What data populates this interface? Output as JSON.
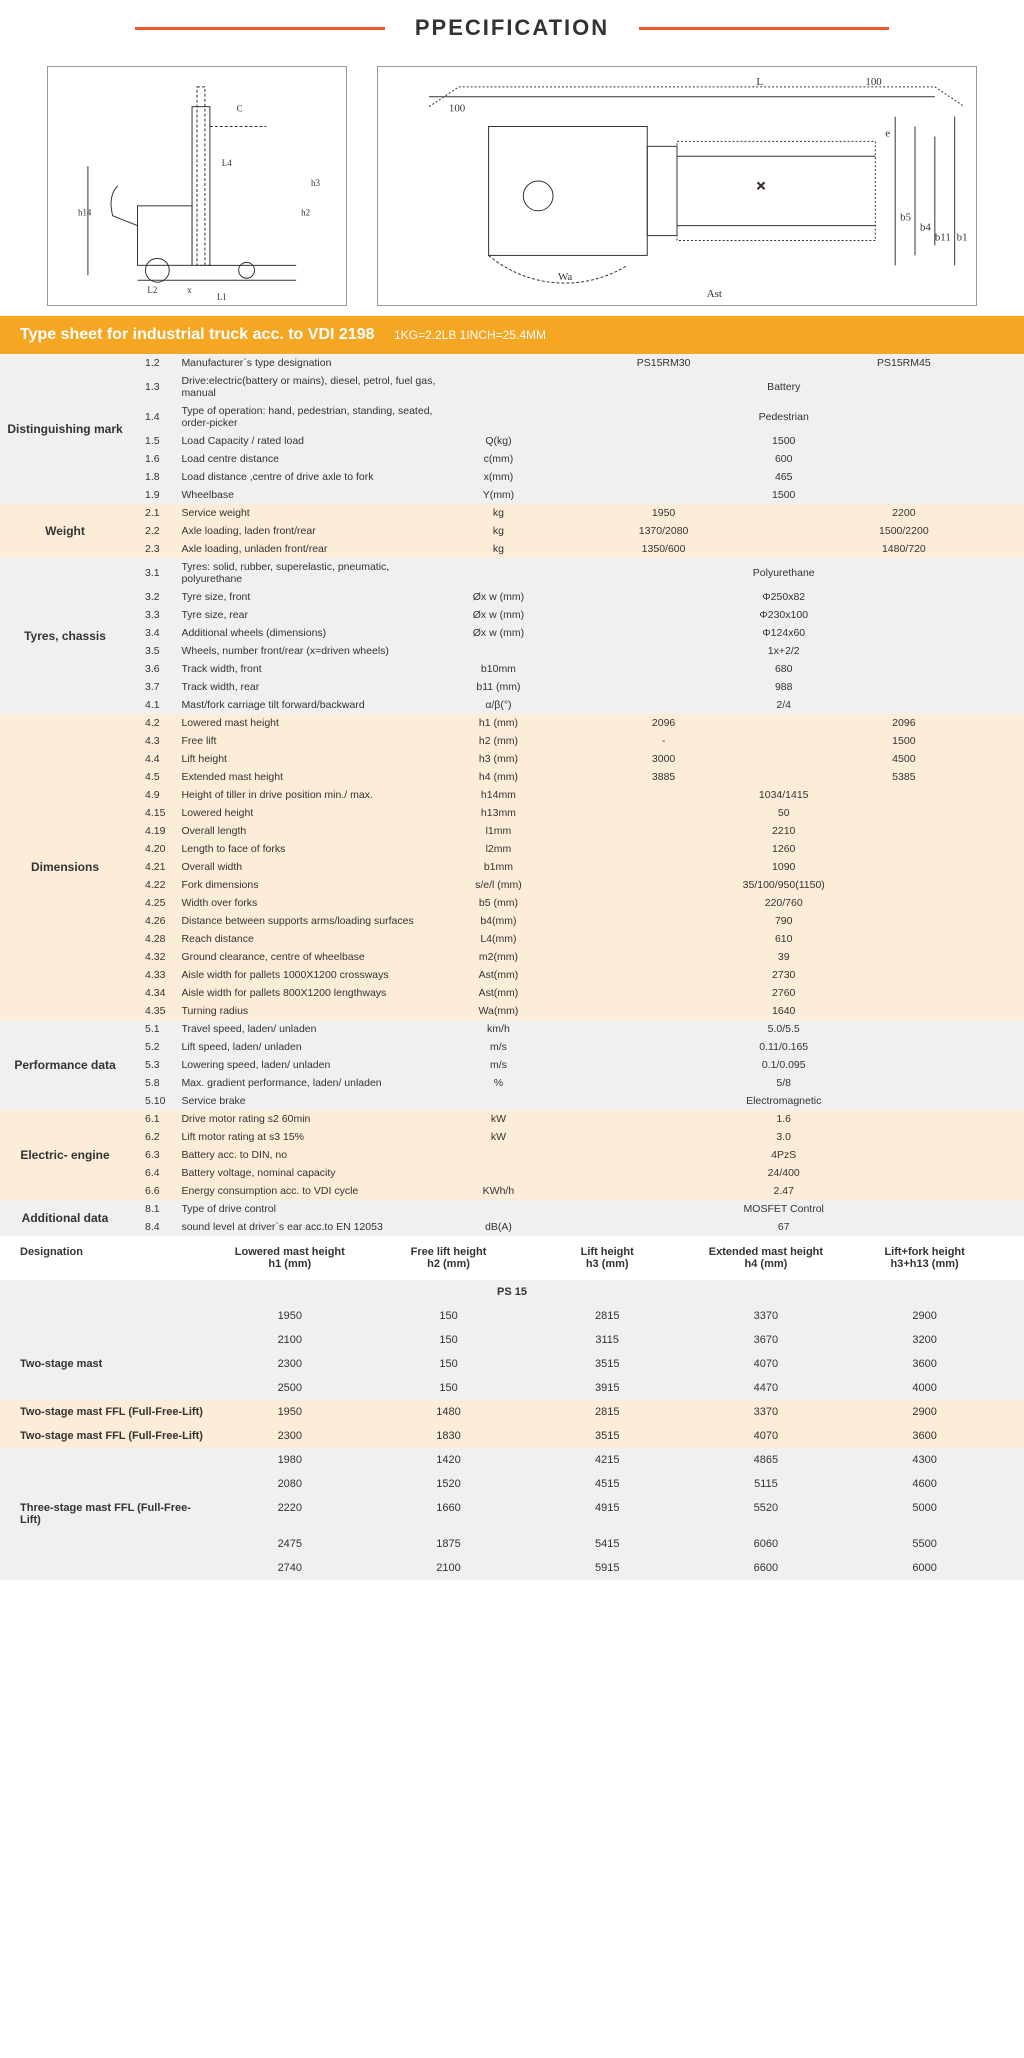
{
  "page_title": "PPECIFICATION",
  "title_bar": {
    "main": "Type sheet for industrial truck acc. to VDI 2198",
    "sub": "1KG=2.2LB  1INCH=25.4MM"
  },
  "sections": [
    {
      "label": "Distinguishing mark",
      "bg": "grey",
      "rows": [
        {
          "n": "1.2",
          "d": "Manufacturer`s type designation",
          "u": "",
          "v": [
            "PS15RM30",
            "PS15RM45"
          ]
        },
        {
          "n": "1.3",
          "d": "Drive:electric(battery or mains), diesel, petrol, fuel gas, manual",
          "u": "",
          "v": [
            "Battery"
          ]
        },
        {
          "n": "1.4",
          "d": "Type of operation: hand, pedestrian, standing, seated, order-picker",
          "u": "",
          "v": [
            "Pedestrian"
          ]
        },
        {
          "n": "1.5",
          "d": "Load Capacity / rated load",
          "u": "Q(kg)",
          "v": [
            "1500"
          ]
        },
        {
          "n": "1.6",
          "d": "Load centre distance",
          "u": "c(mm)",
          "v": [
            "600"
          ]
        },
        {
          "n": "1.8",
          "d": "Load distance ,centre of drive axle to fork",
          "u": "x(mm)",
          "v": [
            "465"
          ]
        },
        {
          "n": "1.9",
          "d": "Wheelbase",
          "u": "Y(mm)",
          "v": [
            "1500"
          ]
        }
      ]
    },
    {
      "label": "Weight",
      "bg": "cream",
      "rows": [
        {
          "n": "2.1",
          "d": "Service weight",
          "u": "kg",
          "v": [
            "1950",
            "2200"
          ]
        },
        {
          "n": "2.2",
          "d": "Axle loading, laden front/rear",
          "u": "kg",
          "v": [
            "1370/2080",
            "1500/2200"
          ]
        },
        {
          "n": "2.3",
          "d": "Axle loading, unladen front/rear",
          "u": "kg",
          "v": [
            "1350/600",
            "1480/720"
          ]
        }
      ]
    },
    {
      "label": "Tyres, chassis",
      "bg": "grey",
      "rows": [
        {
          "n": "3.1",
          "d": "Tyres: solid, rubber, superelastic, pneumatic, polyurethane",
          "u": "",
          "v": [
            "Polyurethane"
          ]
        },
        {
          "n": "3.2",
          "d": "Tyre size, front",
          "u": "Øx w (mm)",
          "v": [
            "Φ250x82"
          ]
        },
        {
          "n": "3.3",
          "d": "Tyre size, rear",
          "u": "Øx w (mm)",
          "v": [
            "Φ230x100"
          ]
        },
        {
          "n": "3.4",
          "d": "Additional wheels (dimensions)",
          "u": "Øx w (mm)",
          "v": [
            "Φ124x60"
          ]
        },
        {
          "n": "3.5",
          "d": "Wheels, number front/rear (x=driven wheels)",
          "u": "",
          "v": [
            "1x+2/2"
          ]
        },
        {
          "n": "3.6",
          "d": "Track width, front",
          "u": "b10mm",
          "v": [
            "680"
          ]
        },
        {
          "n": "3.7",
          "d": "Track width, rear",
          "u": "b11 (mm)",
          "v": [
            "988"
          ]
        },
        {
          "n": "4.1",
          "d": "Mast/fork carriage tilt forward/backward",
          "u": "α/β(°)",
          "v": [
            "2/4"
          ]
        }
      ]
    },
    {
      "label": "Dimensions",
      "bg": "cream",
      "rows": [
        {
          "n": "4.2",
          "d": "Lowered mast height",
          "u": "h1 (mm)",
          "v": [
            "2096",
            "2096"
          ]
        },
        {
          "n": "4.3",
          "d": "Free lift",
          "u": "h2 (mm)",
          "v": [
            "-",
            "1500"
          ]
        },
        {
          "n": "4.4",
          "d": "Lift height",
          "u": "h3 (mm)",
          "v": [
            "3000",
            "4500"
          ]
        },
        {
          "n": "4.5",
          "d": "Extended mast height",
          "u": "h4 (mm)",
          "v": [
            "3885",
            "5385"
          ]
        },
        {
          "n": "4.9",
          "d": "Height of tiller in drive position min./ max.",
          "u": "h14mm",
          "v": [
            "1034/1415"
          ]
        },
        {
          "n": "4.15",
          "d": "Lowered height",
          "u": "h13mm",
          "v": [
            "50"
          ]
        },
        {
          "n": "4.19",
          "d": "Overall length",
          "u": "l1mm",
          "v": [
            "2210"
          ]
        },
        {
          "n": "4.20",
          "d": "Length to face of forks",
          "u": "l2mm",
          "v": [
            "1260"
          ]
        },
        {
          "n": "4.21",
          "d": "Overall width",
          "u": "b1mm",
          "v": [
            "1090"
          ]
        },
        {
          "n": "4.22",
          "d": "Fork dimensions",
          "u": "s/e/l (mm)",
          "v": [
            "35/100/950(1150)"
          ]
        },
        {
          "n": "4.25",
          "d": "Width over forks",
          "u": "b5 (mm)",
          "v": [
            "220/760"
          ]
        },
        {
          "n": "4.26",
          "d": "Distance between supports arms/loading surfaces",
          "u": "b4(mm)",
          "v": [
            "790"
          ]
        },
        {
          "n": "4.28",
          "d": "Reach distance",
          "u": "L4(mm)",
          "v": [
            "610"
          ]
        },
        {
          "n": "4.32",
          "d": "Ground clearance, centre of wheelbase",
          "u": "m2(mm)",
          "v": [
            "39"
          ]
        },
        {
          "n": "4.33",
          "d": "Aisle width for pallets 1000X1200 crossways",
          "u": "Ast(mm)",
          "v": [
            "2730"
          ]
        },
        {
          "n": "4.34",
          "d": "Aisle width for pallets 800X1200 lengthways",
          "u": "Ast(mm)",
          "v": [
            "2760"
          ]
        },
        {
          "n": "4.35",
          "d": "Turning radius",
          "u": "Wa(mm)",
          "v": [
            "1640"
          ]
        }
      ]
    },
    {
      "label": "Performance data",
      "bg": "grey",
      "rows": [
        {
          "n": "5.1",
          "d": "Travel speed, laden/ unladen",
          "u": "km/h",
          "v": [
            "5.0/5.5"
          ]
        },
        {
          "n": "5.2",
          "d": "Lift speed, laden/ unladen",
          "u": "m/s",
          "v": [
            "0.11/0.165"
          ]
        },
        {
          "n": "5.3",
          "d": "Lowering speed, laden/ unladen",
          "u": "m/s",
          "v": [
            "0.1/0.095"
          ]
        },
        {
          "n": "5.8",
          "d": "Max. gradient performance, laden/ unladen",
          "u": "%",
          "v": [
            "5/8"
          ]
        },
        {
          "n": "5.10",
          "d": "Service brake",
          "u": "",
          "v": [
            "Electromagnetic"
          ]
        }
      ]
    },
    {
      "label": "Electric- engine",
      "bg": "cream",
      "rows": [
        {
          "n": "6.1",
          "d": "Drive motor rating s2 60min",
          "u": "kW",
          "v": [
            "1.6"
          ]
        },
        {
          "n": "6.2",
          "d": "Lift motor rating at s3 15%",
          "u": "kW",
          "v": [
            "3.0"
          ]
        },
        {
          "n": "6.3",
          "d": "Battery acc. to DIN, no",
          "u": "",
          "v": [
            "4PzS"
          ]
        },
        {
          "n": "6.4",
          "d": "Battery voltage, nominal capacity",
          "u": "",
          "v": [
            "24/400"
          ]
        },
        {
          "n": "6.6",
          "d": "Energy consumption acc. to VDI cycle",
          "u": "KWh/h",
          "v": [
            "2.47"
          ]
        }
      ]
    },
    {
      "label": "Additional data",
      "bg": "grey",
      "rows": [
        {
          "n": "8.1",
          "d": "Type of drive control",
          "u": "",
          "v": [
            "MOSFET Control"
          ]
        },
        {
          "n": "8.4",
          "d": "sound level at driver`s ear acc.to EN 12053",
          "u": "dB(A)",
          "v": [
            "67"
          ]
        }
      ]
    }
  ],
  "mast_headers": [
    "Designation",
    "Lowered mast height\nh1 (mm)",
    "Free lift height\nh2 (mm)",
    "Lift height\nh3 (mm)",
    "Extended mast height\nh4 (mm)",
    "Lift+fork height\nh3+h13 (mm)"
  ],
  "mast_subtitle": "PS 15",
  "mast_sections": [
    {
      "label": "Two-stage mast",
      "bg": "grey",
      "rows": [
        [
          "1950",
          "150",
          "2815",
          "3370",
          "2900"
        ],
        [
          "2100",
          "150",
          "3115",
          "3670",
          "3200"
        ],
        [
          "2300",
          "150",
          "3515",
          "4070",
          "3600"
        ],
        [
          "2500",
          "150",
          "3915",
          "4470",
          "4000"
        ]
      ]
    },
    {
      "label": "Two-stage mast  FFL (Full-Free-Lift)",
      "bg": "cream",
      "rows": [
        [
          "1950",
          "1480",
          "2815",
          "3370",
          "2900"
        ],
        [
          "2300",
          "1830",
          "3515",
          "4070",
          "3600"
        ]
      ]
    },
    {
      "label": "Three-stage mast  FFL (Full-Free-Lift)",
      "bg": "grey",
      "rows": [
        [
          "1980",
          "1420",
          "4215",
          "4865",
          "4300"
        ],
        [
          "2080",
          "1520",
          "4515",
          "5115",
          "4600"
        ],
        [
          "2220",
          "1660",
          "4915",
          "5520",
          "5000"
        ],
        [
          "2475",
          "1875",
          "5415",
          "6060",
          "5500"
        ],
        [
          "2740",
          "2100",
          "5915",
          "6600",
          "6000"
        ]
      ]
    }
  ],
  "diagram_labels": {
    "d1": [
      "C",
      "L4",
      "h3",
      "h2",
      "h14",
      "L2",
      "x",
      "L1"
    ],
    "d2": [
      "100",
      "L",
      "100",
      "e",
      "b5",
      "b4",
      "b11",
      "b1",
      "Wa",
      "Ast"
    ]
  },
  "colors": {
    "accent": "#e85a2c",
    "titlebar": "#f5a623",
    "grey": "#f0f0f0",
    "cream": "#fcedd8"
  }
}
